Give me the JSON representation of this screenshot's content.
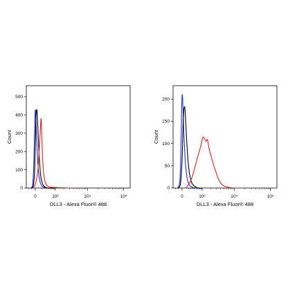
{
  "chart_data": [
    {
      "type": "line",
      "title": "",
      "xlabel": "DLL3 - Alexa Fluor® 488",
      "ylabel": "Count",
      "x_scale": "biexponential",
      "xlim": [
        -300,
        150000
      ],
      "ylim": [
        0,
        560
      ],
      "y_ticks": [
        0,
        100,
        200,
        300,
        400,
        500
      ],
      "x_ticks": [
        {
          "value": 0,
          "label": "0"
        },
        {
          "value": 1000,
          "label": "10³"
        },
        {
          "value": 10000,
          "label": "10⁴"
        },
        {
          "value": 100000,
          "label": "10⁵"
        }
      ],
      "grid": false,
      "legend": "none",
      "series": [
        {
          "color": "#1f2bd6",
          "x": [
            -120,
            -70,
            -40,
            -15,
            0,
            15,
            40,
            80,
            130,
            200,
            300,
            500,
            1000
          ],
          "values": [
            0,
            20,
            120,
            330,
            425,
            390,
            250,
            110,
            40,
            12,
            4,
            0,
            0
          ]
        },
        {
          "color": "#000000",
          "x": [
            -100,
            -50,
            -20,
            0,
            20,
            45,
            70,
            110,
            160,
            230,
            330,
            500,
            1000
          ],
          "values": [
            0,
            15,
            80,
            230,
            395,
            425,
            330,
            180,
            70,
            22,
            6,
            0,
            0
          ]
        },
        {
          "color": "#d42020",
          "x": [
            -60,
            0,
            60,
            110,
            150,
            175,
            200,
            230,
            270,
            330,
            420,
            600,
            1000,
            3000
          ],
          "values": [
            0,
            20,
            80,
            200,
            320,
            380,
            300,
            170,
            90,
            40,
            15,
            5,
            3,
            0
          ]
        }
      ]
    },
    {
      "type": "line",
      "title": "",
      "xlabel": "DLL3 - Alexa Fluor® 488",
      "ylabel": "Count",
      "x_scale": "biexponential",
      "xlim": [
        -300,
        150000
      ],
      "ylim": [
        0,
        230
      ],
      "y_ticks": [
        0,
        50,
        100,
        150,
        200
      ],
      "x_ticks": [
        {
          "value": 0,
          "label": "0"
        },
        {
          "value": 1000,
          "label": "10³"
        },
        {
          "value": 10000,
          "label": "10⁴"
        },
        {
          "value": 100000,
          "label": "10⁵"
        }
      ],
      "grid": false,
      "legend": "none",
      "series": [
        {
          "color": "#1f2bd6",
          "x": [
            -120,
            -60,
            -30,
            -10,
            5,
            20,
            45,
            90,
            150,
            230,
            350,
            600,
            1000
          ],
          "values": [
            0,
            15,
            80,
            175,
            210,
            190,
            130,
            60,
            22,
            7,
            2,
            0,
            0
          ]
        },
        {
          "color": "#000000",
          "x": [
            -100,
            -40,
            0,
            30,
            55,
            80,
            110,
            160,
            230,
            330,
            480,
            700,
            1000
          ],
          "values": [
            0,
            10,
            60,
            150,
            180,
            178,
            140,
            80,
            35,
            12,
            4,
            0,
            0
          ]
        },
        {
          "color": "#d42020",
          "x": [
            100,
            200,
            300,
            400,
            500,
            600,
            700,
            800,
            900,
            1000,
            1100,
            1250,
            1400,
            1550,
            1700,
            1900,
            2100,
            2400,
            2800,
            3300,
            4000,
            5000,
            6500,
            9000
          ],
          "values": [
            0,
            8,
            18,
            32,
            48,
            62,
            75,
            85,
            95,
            108,
            115,
            110,
            105,
            109,
            95,
            80,
            70,
            55,
            40,
            25,
            12,
            5,
            2,
            0
          ]
        }
      ]
    }
  ]
}
